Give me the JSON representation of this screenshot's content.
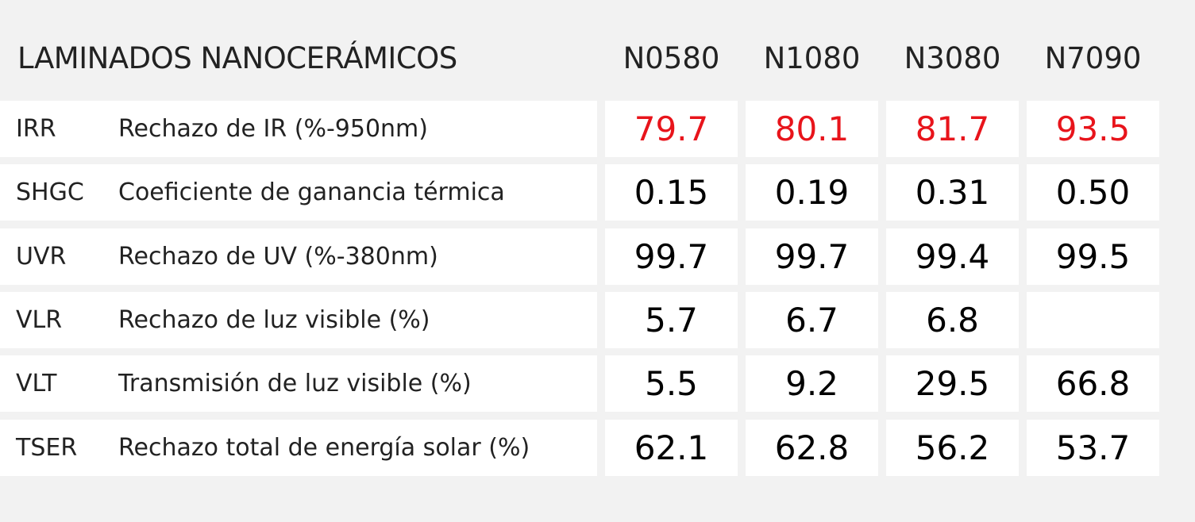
{
  "table": {
    "title": "LAMINADOS NANOCERÁMICOS",
    "columns": [
      "N0580",
      "N1080",
      "N3080",
      "N7090"
    ],
    "rows": [
      {
        "code": "IRR",
        "description": "Rechazo de IR (%-950nm)",
        "values": [
          "79.7",
          "80.1",
          "81.7",
          "93.5"
        ],
        "color": "#e8141b"
      },
      {
        "code": "SHGC",
        "description": "Coeficiente de ganancia térmica",
        "values": [
          "0.15",
          "0.19",
          "0.31",
          "0.50"
        ]
      },
      {
        "code": "UVR",
        "description": "Rechazo de UV (%-380nm)",
        "values": [
          "99.7",
          "99.7",
          "99.4",
          "99.5"
        ]
      },
      {
        "code": "VLR",
        "description": "Rechazo de luz visible (%)",
        "values": [
          "5.7",
          "6.7",
          "6.8",
          null
        ]
      },
      {
        "code": "VLT",
        "description": "Transmisión de luz visible (%)",
        "values": [
          "5.5",
          "9.2",
          "29.5",
          "66.8"
        ]
      },
      {
        "code": "TSER",
        "description": "Rechazo total de energía solar (%)",
        "values": [
          "62.1",
          "62.8",
          "56.2",
          "53.7"
        ]
      }
    ]
  }
}
